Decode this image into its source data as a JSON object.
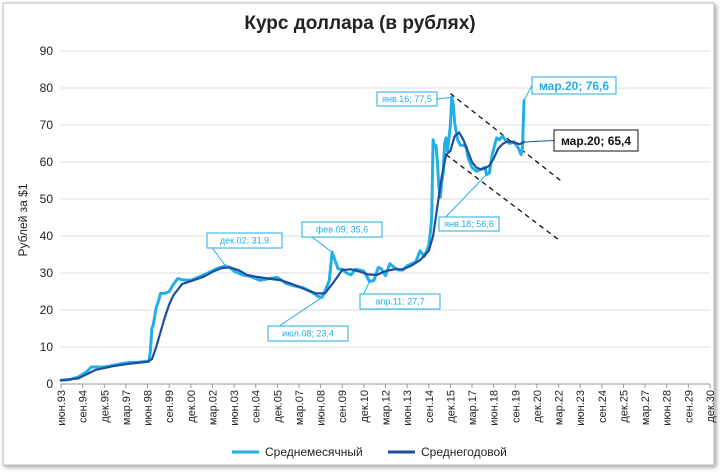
{
  "chart_data": {
    "type": "line",
    "title": "Курс доллара (в рублях)",
    "ylabel": "Рублей за $1",
    "xlabel": "",
    "ylim": [
      0,
      90
    ],
    "yticks": [
      0,
      10,
      20,
      30,
      40,
      50,
      60,
      70,
      80,
      90
    ],
    "grid": true,
    "legend_position": "bottom",
    "x_start_month": "1993-06",
    "x_end_month": "2030-12",
    "x_tick_labels": [
      "июн.93",
      "сен.94",
      "дек.95",
      "мар.97",
      "июн.98",
      "сен.99",
      "дек.00",
      "мар.02",
      "июн.03",
      "сен.04",
      "дек.05",
      "мар.07",
      "июн.08",
      "сен.09",
      "дек.10",
      "мар.12",
      "июн.13",
      "сен.14",
      "дек.15",
      "мар.17",
      "июн.18",
      "сен.19",
      "дек.20",
      "мар.22",
      "июн.23",
      "сен.24",
      "дек.25",
      "мар.27",
      "июн.28",
      "сен.29",
      "дек.30"
    ],
    "series": [
      {
        "name": "Среднемесячный",
        "color": "#22aee6",
        "points": [
          [
            "1993-06",
            1.0
          ],
          [
            "1993-12",
            1.2
          ],
          [
            "1994-06",
            1.9
          ],
          [
            "1994-09",
            2.6
          ],
          [
            "1994-12",
            3.4
          ],
          [
            "1995-03",
            4.6
          ],
          [
            "1995-06",
            4.6
          ],
          [
            "1995-12",
            4.6
          ],
          [
            "1996-06",
            5.0
          ],
          [
            "1996-12",
            5.5
          ],
          [
            "1997-06",
            5.8
          ],
          [
            "1997-12",
            5.9
          ],
          [
            "1998-05",
            6.1
          ],
          [
            "1998-07",
            6.2
          ],
          [
            "1998-08",
            9.0
          ],
          [
            "1998-09",
            15.0
          ],
          [
            "1998-10",
            16.0
          ],
          [
            "1998-12",
            20.6
          ],
          [
            "1999-02",
            23.0
          ],
          [
            "1999-03",
            24.5
          ],
          [
            "1999-06",
            24.5
          ],
          [
            "1999-09",
            25.0
          ],
          [
            "1999-12",
            27.0
          ],
          [
            "2000-03",
            28.5
          ],
          [
            "2000-06",
            28.2
          ],
          [
            "2000-12",
            28.0
          ],
          [
            "2001-06",
            29.0
          ],
          [
            "2001-12",
            30.0
          ],
          [
            "2002-06",
            31.2
          ],
          [
            "2002-12",
            31.9
          ],
          [
            "2003-03",
            31.5
          ],
          [
            "2003-06",
            30.5
          ],
          [
            "2003-12",
            29.5
          ],
          [
            "2004-06",
            29.0
          ],
          [
            "2004-12",
            28.0
          ],
          [
            "2005-06",
            28.5
          ],
          [
            "2005-12",
            28.8
          ],
          [
            "2006-06",
            27.2
          ],
          [
            "2006-12",
            26.5
          ],
          [
            "2007-06",
            26.0
          ],
          [
            "2007-12",
            24.8
          ],
          [
            "2008-04",
            23.7
          ],
          [
            "2008-07",
            23.4
          ],
          [
            "2008-10",
            26.0
          ],
          [
            "2008-12",
            28.0
          ],
          [
            "2009-02",
            35.6
          ],
          [
            "2009-04",
            33.5
          ],
          [
            "2009-06",
            31.2
          ],
          [
            "2009-09",
            31.0
          ],
          [
            "2009-12",
            30.0
          ],
          [
            "2010-03",
            29.5
          ],
          [
            "2010-06",
            31.0
          ],
          [
            "2010-09",
            30.8
          ],
          [
            "2010-12",
            30.5
          ],
          [
            "2011-04",
            27.7
          ],
          [
            "2011-07",
            28.0
          ],
          [
            "2011-10",
            31.5
          ],
          [
            "2011-12",
            31.2
          ],
          [
            "2012-03",
            29.3
          ],
          [
            "2012-06",
            32.5
          ],
          [
            "2012-09",
            31.5
          ],
          [
            "2012-12",
            30.8
          ],
          [
            "2013-03",
            30.8
          ],
          [
            "2013-06",
            31.9
          ],
          [
            "2013-09",
            32.5
          ],
          [
            "2013-12",
            33.0
          ],
          [
            "2014-03",
            36.0
          ],
          [
            "2014-06",
            34.5
          ],
          [
            "2014-09",
            37.5
          ],
          [
            "2014-10",
            40.5
          ],
          [
            "2014-11",
            45.0
          ],
          [
            "2014-12",
            66.0
          ],
          [
            "2015-01",
            64.0
          ],
          [
            "2015-02",
            64.5
          ],
          [
            "2015-03",
            60.0
          ],
          [
            "2015-04",
            53.0
          ],
          [
            "2015-05",
            50.5
          ],
          [
            "2015-06",
            54.5
          ],
          [
            "2015-07",
            57.0
          ],
          [
            "2015-08",
            65.0
          ],
          [
            "2015-09",
            66.5
          ],
          [
            "2015-10",
            63.0
          ],
          [
            "2015-12",
            70.0
          ],
          [
            "2016-01",
            77.5
          ],
          [
            "2016-02",
            75.5
          ],
          [
            "2016-03",
            70.5
          ],
          [
            "2016-05",
            66.0
          ],
          [
            "2016-07",
            64.5
          ],
          [
            "2016-09",
            64.5
          ],
          [
            "2016-11",
            64.0
          ],
          [
            "2016-12",
            61.5
          ],
          [
            "2017-03",
            58.5
          ],
          [
            "2017-06",
            57.5
          ],
          [
            "2017-09",
            58.0
          ],
          [
            "2017-12",
            58.6
          ],
          [
            "2018-01",
            56.6
          ],
          [
            "2018-03",
            57.0
          ],
          [
            "2018-05",
            62.0
          ],
          [
            "2018-08",
            66.5
          ],
          [
            "2018-10",
            66.0
          ],
          [
            "2018-12",
            67.0
          ],
          [
            "2019-02",
            66.0
          ],
          [
            "2019-05",
            65.0
          ],
          [
            "2019-08",
            65.5
          ],
          [
            "2019-11",
            63.8
          ],
          [
            "2020-01",
            62.0
          ],
          [
            "2020-02",
            64.0
          ],
          [
            "2020-03",
            76.6
          ]
        ]
      },
      {
        "name": "Среднегодовой",
        "color": "#1f4e9e",
        "points": [
          [
            "1993-06",
            1.0
          ],
          [
            "1994-06",
            1.5
          ],
          [
            "1995-06",
            3.8
          ],
          [
            "1996-06",
            4.8
          ],
          [
            "1997-06",
            5.5
          ],
          [
            "1998-06",
            6.0
          ],
          [
            "1998-09",
            6.7
          ],
          [
            "1998-12",
            10.0
          ],
          [
            "1999-03",
            14.0
          ],
          [
            "1999-06",
            18.0
          ],
          [
            "1999-09",
            21.5
          ],
          [
            "1999-12",
            24.0
          ],
          [
            "2000-06",
            27.0
          ],
          [
            "2001-03",
            28.2
          ],
          [
            "2001-09",
            29.0
          ],
          [
            "2002-03",
            30.3
          ],
          [
            "2002-09",
            31.3
          ],
          [
            "2003-03",
            31.5
          ],
          [
            "2003-09",
            30.8
          ],
          [
            "2004-03",
            29.5
          ],
          [
            "2004-09",
            29.0
          ],
          [
            "2005-06",
            28.5
          ],
          [
            "2006-03",
            28.0
          ],
          [
            "2006-09",
            27.2
          ],
          [
            "2007-03",
            26.3
          ],
          [
            "2007-09",
            25.3
          ],
          [
            "2008-03",
            24.5
          ],
          [
            "2008-09",
            24.5
          ],
          [
            "2009-03",
            27.5
          ],
          [
            "2009-09",
            30.8
          ],
          [
            "2010-03",
            31.0
          ],
          [
            "2010-09",
            30.4
          ],
          [
            "2011-03",
            29.6
          ],
          [
            "2011-09",
            29.5
          ],
          [
            "2012-03",
            30.5
          ],
          [
            "2012-09",
            31.0
          ],
          [
            "2013-03",
            31.0
          ],
          [
            "2013-09",
            32.0
          ],
          [
            "2014-03",
            33.5
          ],
          [
            "2014-09",
            36.0
          ],
          [
            "2014-12",
            40.0
          ],
          [
            "2015-03",
            48.0
          ],
          [
            "2015-06",
            56.0
          ],
          [
            "2015-09",
            62.0
          ],
          [
            "2015-12",
            63.0
          ],
          [
            "2016-03",
            67.0
          ],
          [
            "2016-06",
            68.0
          ],
          [
            "2016-09",
            66.0
          ],
          [
            "2016-12",
            63.0
          ],
          [
            "2017-03",
            60.0
          ],
          [
            "2017-06",
            58.5
          ],
          [
            "2017-09",
            58.0
          ],
          [
            "2017-12",
            58.3
          ],
          [
            "2018-03",
            59.0
          ],
          [
            "2018-06",
            61.0
          ],
          [
            "2018-09",
            63.5
          ],
          [
            "2018-12",
            64.8
          ],
          [
            "2019-03",
            65.5
          ],
          [
            "2019-06",
            65.5
          ],
          [
            "2019-09",
            65.2
          ],
          [
            "2019-12",
            64.8
          ],
          [
            "2020-03",
            65.4
          ]
        ]
      }
    ],
    "annotations": [
      {
        "label": "июл.08; 23,4",
        "series": 0,
        "point": [
          "2008-07",
          23.4
        ]
      },
      {
        "label": "дек.02; 31,9",
        "series": 0,
        "point": [
          "2002-12",
          31.9
        ]
      },
      {
        "label": "фев.09; 35,6",
        "series": 0,
        "point": [
          "2009-02",
          35.6
        ]
      },
      {
        "label": "апр.11; 27,7",
        "series": 0,
        "point": [
          "2011-04",
          27.7
        ]
      },
      {
        "label": "янв.16; 77,5",
        "series": 0,
        "point": [
          "2016-01",
          77.5
        ]
      },
      {
        "label": "янв.18; 56,6",
        "series": 0,
        "point": [
          "2018-01",
          56.6
        ]
      },
      {
        "label": "мар.20; 76,6",
        "series": 0,
        "point": [
          "2020-03",
          76.6
        ]
      },
      {
        "label": "мар.20; 65,4",
        "series": 1,
        "point": [
          "2020-03",
          65.4
        ]
      }
    ],
    "trend_lines": [
      {
        "from": [
          "2015-12",
          78.5
        ],
        "to": [
          "2022-06",
          54.5
        ]
      },
      {
        "from": [
          "2015-09",
          62.0
        ],
        "to": [
          "2022-03",
          39.0
        ]
      }
    ]
  }
}
